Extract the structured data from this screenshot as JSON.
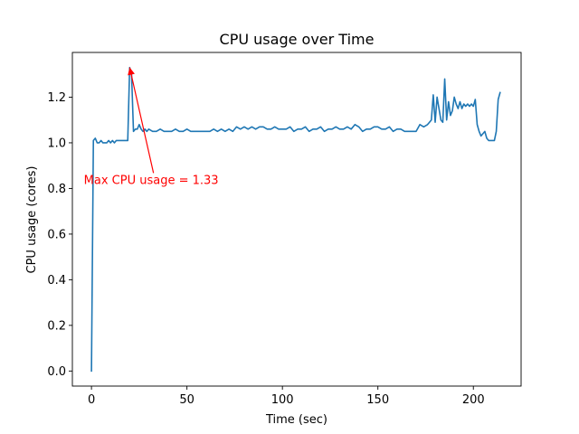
{
  "chart_data": {
    "type": "line",
    "title": "CPU usage over Time",
    "xlabel": "Time (sec)",
    "ylabel": "CPU usage (cores)",
    "xlim": [
      -10,
      225
    ],
    "ylim": [
      -0.066,
      1.396
    ],
    "xticks": [
      0,
      50,
      100,
      150,
      200
    ],
    "yticks": [
      0.0,
      0.2,
      0.4,
      0.6,
      0.8,
      1.0,
      1.2
    ],
    "grid": false,
    "line_color": "#1f77b4",
    "series": [
      {
        "x": [
          0,
          1,
          2,
          3,
          4,
          5,
          6,
          7,
          8,
          9,
          10,
          11,
          12,
          13,
          14,
          15,
          16,
          17,
          18,
          19,
          20,
          21,
          22,
          23,
          24,
          25,
          26,
          27,
          28,
          29,
          30,
          32,
          34,
          36,
          38,
          40,
          42,
          44,
          46,
          48,
          50,
          52,
          54,
          56,
          58,
          60,
          62,
          64,
          66,
          68,
          70,
          72,
          74,
          76,
          78,
          80,
          82,
          84,
          86,
          88,
          90,
          92,
          94,
          96,
          98,
          100,
          102,
          104,
          106,
          108,
          110,
          112,
          114,
          116,
          118,
          120,
          122,
          124,
          126,
          128,
          130,
          132,
          134,
          136,
          138,
          140,
          142,
          144,
          146,
          148,
          150,
          152,
          154,
          156,
          158,
          160,
          162,
          164,
          166,
          168,
          170,
          172,
          174,
          176,
          178,
          179,
          180,
          181,
          182,
          183,
          184,
          185,
          186,
          187,
          188,
          189,
          190,
          191,
          192,
          193,
          194,
          195,
          196,
          197,
          198,
          199,
          200,
          201,
          202,
          203,
          204,
          205,
          206,
          207,
          208,
          209,
          210,
          211,
          212,
          213,
          214
        ],
        "y": [
          0.0,
          1.01,
          1.02,
          1.0,
          1.0,
          1.01,
          1.0,
          1.0,
          1.0,
          1.01,
          1.0,
          1.01,
          1.0,
          1.01,
          1.01,
          1.01,
          1.01,
          1.01,
          1.01,
          1.01,
          1.33,
          1.3,
          1.05,
          1.06,
          1.06,
          1.08,
          1.06,
          1.05,
          1.06,
          1.05,
          1.06,
          1.05,
          1.05,
          1.06,
          1.05,
          1.05,
          1.05,
          1.06,
          1.05,
          1.05,
          1.06,
          1.05,
          1.05,
          1.05,
          1.05,
          1.05,
          1.05,
          1.06,
          1.05,
          1.06,
          1.05,
          1.06,
          1.05,
          1.07,
          1.06,
          1.07,
          1.06,
          1.07,
          1.06,
          1.07,
          1.07,
          1.06,
          1.06,
          1.07,
          1.06,
          1.06,
          1.06,
          1.07,
          1.05,
          1.06,
          1.06,
          1.07,
          1.05,
          1.06,
          1.06,
          1.07,
          1.05,
          1.06,
          1.06,
          1.07,
          1.06,
          1.06,
          1.07,
          1.06,
          1.08,
          1.07,
          1.05,
          1.06,
          1.06,
          1.07,
          1.07,
          1.06,
          1.06,
          1.07,
          1.05,
          1.06,
          1.06,
          1.05,
          1.05,
          1.05,
          1.05,
          1.08,
          1.07,
          1.08,
          1.1,
          1.21,
          1.09,
          1.2,
          1.15,
          1.1,
          1.09,
          1.28,
          1.1,
          1.18,
          1.12,
          1.14,
          1.2,
          1.17,
          1.15,
          1.18,
          1.15,
          1.17,
          1.16,
          1.17,
          1.16,
          1.17,
          1.16,
          1.19,
          1.08,
          1.05,
          1.03,
          1.04,
          1.05,
          1.02,
          1.01,
          1.01,
          1.01,
          1.01,
          1.05,
          1.19,
          1.22
        ]
      }
    ],
    "annotation": {
      "text": "Max CPU usage = 1.33",
      "xy": [
        20,
        1.33
      ],
      "xytext": [
        -4,
        0.82
      ],
      "color": "#ff0000"
    }
  }
}
